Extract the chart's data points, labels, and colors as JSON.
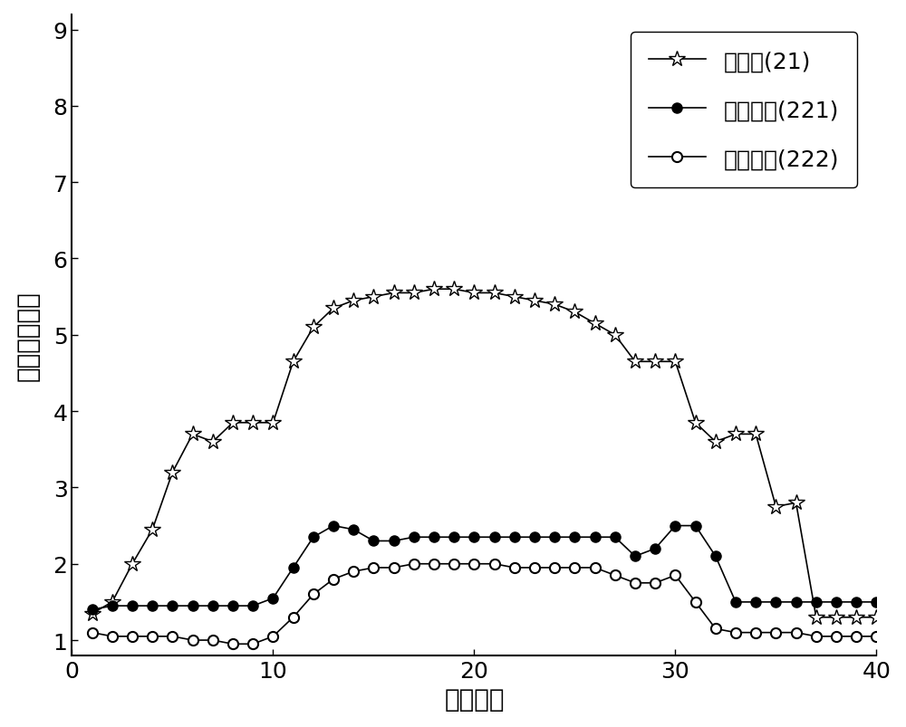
{
  "title": "",
  "xlabel": "条带编号",
  "ylabel": "相对介电常数",
  "xlim": [
    0,
    40
  ],
  "ylim": [
    0.8,
    9.2
  ],
  "yticks": [
    1,
    2,
    3,
    4,
    5,
    6,
    7,
    8,
    9
  ],
  "xticks": [
    0,
    10,
    20,
    30,
    40
  ],
  "legend_labels": [
    "中间层(21)",
    "匹配内层(221)",
    "匹配外层(222)"
  ],
  "series1_x": [
    1,
    2,
    3,
    4,
    5,
    6,
    7,
    8,
    9,
    10,
    11,
    12,
    13,
    14,
    15,
    16,
    17,
    18,
    19,
    20,
    21,
    22,
    23,
    24,
    25,
    26,
    27,
    28,
    29,
    30,
    31,
    32,
    33,
    34,
    35,
    36,
    37,
    38,
    39,
    40
  ],
  "series1_y": [
    1.35,
    1.5,
    2.0,
    2.45,
    3.2,
    3.7,
    3.6,
    3.85,
    3.85,
    3.85,
    4.65,
    5.1,
    5.35,
    5.45,
    5.5,
    5.55,
    5.55,
    5.6,
    5.6,
    5.55,
    5.55,
    5.5,
    5.45,
    5.4,
    5.3,
    5.15,
    5.0,
    4.65,
    4.65,
    4.65,
    3.85,
    3.6,
    3.7,
    3.7,
    2.75,
    2.8,
    1.3,
    1.3,
    1.3,
    1.3
  ],
  "series2_x": [
    1,
    2,
    3,
    4,
    5,
    6,
    7,
    8,
    9,
    10,
    11,
    12,
    13,
    14,
    15,
    16,
    17,
    18,
    19,
    20,
    21,
    22,
    23,
    24,
    25,
    26,
    27,
    28,
    29,
    30,
    31,
    32,
    33,
    34,
    35,
    36,
    37,
    38,
    39,
    40
  ],
  "series2_y": [
    1.4,
    1.45,
    1.45,
    1.45,
    1.45,
    1.45,
    1.45,
    1.45,
    1.45,
    1.55,
    1.95,
    2.35,
    2.5,
    2.45,
    2.3,
    2.3,
    2.35,
    2.35,
    2.35,
    2.35,
    2.35,
    2.35,
    2.35,
    2.35,
    2.35,
    2.35,
    2.35,
    2.1,
    2.2,
    2.5,
    2.5,
    2.1,
    1.5,
    1.5,
    1.5,
    1.5,
    1.5,
    1.5,
    1.5,
    1.5
  ],
  "series3_x": [
    1,
    2,
    3,
    4,
    5,
    6,
    7,
    8,
    9,
    10,
    11,
    12,
    13,
    14,
    15,
    16,
    17,
    18,
    19,
    20,
    21,
    22,
    23,
    24,
    25,
    26,
    27,
    28,
    29,
    30,
    31,
    32,
    33,
    34,
    35,
    36,
    37,
    38,
    39,
    40
  ],
  "series3_y": [
    1.1,
    1.05,
    1.05,
    1.05,
    1.05,
    1.0,
    1.0,
    0.95,
    0.95,
    1.05,
    1.3,
    1.6,
    1.8,
    1.9,
    1.95,
    1.95,
    2.0,
    2.0,
    2.0,
    2.0,
    2.0,
    1.95,
    1.95,
    1.95,
    1.95,
    1.95,
    1.85,
    1.75,
    1.75,
    1.85,
    1.5,
    1.15,
    1.1,
    1.1,
    1.1,
    1.1,
    1.05,
    1.05,
    1.05,
    1.05
  ],
  "line_color": "#000000",
  "background_color": "#ffffff",
  "fontsize_label": 20,
  "fontsize_tick": 18,
  "fontsize_legend": 18
}
